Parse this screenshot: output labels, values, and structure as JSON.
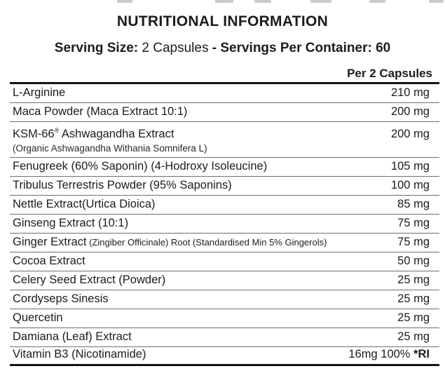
{
  "header": {
    "title": "NUTRITIONAL INFORMATION",
    "serving_line": {
      "bold_prefix": "Serving Size:",
      "regular": "2 Capsules",
      "bold_suffix": "- Servings Per Container: 60"
    },
    "column_header": "Per 2 Capsules"
  },
  "table": {
    "rows": [
      {
        "name": "L-Arginine",
        "amount": "210 mg"
      },
      {
        "name": "Maca Powder (Maca Extract 10:1)",
        "amount": "200 mg"
      },
      {
        "name": "KSM-66",
        "sup": "®",
        "name2": " Ashwagandha Extract",
        "sub": "(Organic Ashwagandha Withania Somnifera L)",
        "amount": "200 mg"
      },
      {
        "name": "Fenugreek (60% Saponin) (4-Hodroxy Isoleucine)",
        "amount": "105 mg"
      },
      {
        "name": "Tribulus Terrestris Powder (95% Saponins)",
        "amount": "100 mg"
      },
      {
        "name": "Nettle Extract(Urtica Dioica)",
        "amount": "85 mg"
      },
      {
        "name": "Ginseng Extract (10:1)",
        "amount": "75 mg"
      },
      {
        "name": "Ginger Extract",
        "small": " (Zingiber Officinale) Root (Standardised Min 5% Gingerols)",
        "amount": "75 mg"
      },
      {
        "name": "Cocoa Extract",
        "amount": "50 mg"
      },
      {
        "name": "Celery Seed Extract (Powder)",
        "amount": "25 mg"
      },
      {
        "name": "Cordyseps Sinesis",
        "amount": "25 mg"
      },
      {
        "name": "Quercetin",
        "amount": "25 mg"
      },
      {
        "name": "Damiana (Leaf) Extract",
        "amount": "25 mg"
      },
      {
        "name": "Vitamin B3 (Nicotinamide)",
        "amount": "16mg 100% ",
        "amount_bold": "*RI"
      }
    ]
  }
}
